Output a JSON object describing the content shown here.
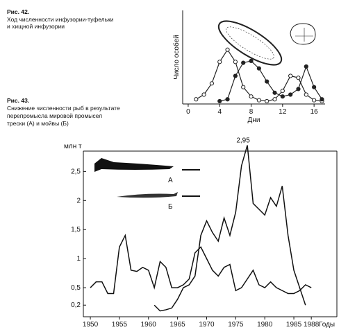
{
  "figures": [
    {
      "label": "Рис. 42.",
      "caption": [
        "Ход численности инфузории-туфельки",
        "и хищной инфузории"
      ]
    },
    {
      "label": "Рис. 43.",
      "caption": [
        "Снижение численности рыб в результате",
        "перепромысла  мировой промысел",
        "трески (А) и мойвы (Б)"
      ]
    }
  ],
  "chart_data": [
    {
      "type": "line",
      "x_label": "Дни",
      "y_label": "Число особей",
      "xlim": [
        -0.7,
        17.4
      ],
      "ylim": [
        0,
        100
      ],
      "xticks": [
        0,
        4,
        8,
        12,
        16
      ],
      "series": [
        {
          "color": "#222",
          "marker": "open",
          "x": [
            1,
            2,
            3,
            4,
            5,
            6,
            7,
            8,
            9,
            10,
            11,
            12,
            13,
            14,
            15,
            16,
            17
          ],
          "values": [
            5,
            10,
            22,
            45,
            58,
            45,
            18,
            8,
            4,
            3,
            5,
            14,
            30,
            28,
            10,
            4,
            3
          ]
        },
        {
          "color": "#222",
          "marker": "filled",
          "x": [
            4,
            5,
            6,
            7,
            8,
            9,
            10,
            11,
            12,
            13,
            14,
            15,
            16,
            17
          ],
          "values": [
            3,
            5,
            30,
            44,
            46,
            38,
            24,
            12,
            8,
            10,
            16,
            40,
            18,
            5
          ]
        }
      ]
    },
    {
      "type": "line",
      "x_label": "Годы",
      "y_label": "млн т",
      "xlim": [
        1948.8,
        1992.4
      ],
      "ylim": [
        0,
        2.85
      ],
      "xticks": [
        1950,
        1955,
        1960,
        1965,
        1970,
        1975,
        1980,
        1985,
        1988
      ],
      "yticks": [
        {
          "value": 0.2,
          "label": "0,2"
        },
        {
          "value": 0.5,
          "label": "0,5"
        },
        1,
        {
          "value": 1.5,
          "label": "1,5"
        },
        2,
        {
          "value": 2.5,
          "label": "2,5"
        }
      ],
      "series": [
        {
          "name": "А",
          "color": "#111",
          "x": [
            1950,
            1951,
            1952,
            1953,
            1954,
            1955,
            1956,
            1957,
            1958,
            1959,
            1960,
            1961,
            1962,
            1963,
            1964,
            1965,
            1966,
            1967,
            1968,
            1969,
            1970,
            1971,
            1972,
            1973,
            1974,
            1975,
            1976,
            1977,
            1978,
            1979,
            1980,
            1981,
            1982,
            1983,
            1984,
            1985,
            1986,
            1987,
            1988
          ],
          "values": [
            0.5,
            0.6,
            0.6,
            0.4,
            0.4,
            1.2,
            1.4,
            0.8,
            0.78,
            0.85,
            0.8,
            0.5,
            0.95,
            0.85,
            0.5,
            0.5,
            0.55,
            0.65,
            1.1,
            1.2,
            1.0,
            0.8,
            0.7,
            0.85,
            0.9,
            0.45,
            0.5,
            0.65,
            0.8,
            0.55,
            0.5,
            0.6,
            0.5,
            0.45,
            0.4,
            0.4,
            0.45,
            0.55,
            0.5
          ]
        },
        {
          "name": "Б",
          "color": "#111",
          "x": [
            1961,
            1962,
            1963,
            1964,
            1965,
            1966,
            1967,
            1968,
            1969,
            1970,
            1971,
            1972,
            1973,
            1974,
            1975,
            1976,
            1977,
            1978,
            1979,
            1980,
            1981,
            1982,
            1983,
            1984,
            1985,
            1986,
            1987
          ],
          "values": [
            0.2,
            0.1,
            0.12,
            0.15,
            0.3,
            0.5,
            0.55,
            0.7,
            1.4,
            1.65,
            1.45,
            1.3,
            1.7,
            1.4,
            1.8,
            2.6,
            2.95,
            1.95,
            1.85,
            1.75,
            2.05,
            1.9,
            2.25,
            1.4,
            0.8,
            0.5,
            0.2
          ],
          "value_labels": [
            null,
            null,
            null,
            null,
            null,
            null,
            null,
            null,
            null,
            null,
            null,
            null,
            null,
            null,
            null,
            null,
            "2,95",
            null,
            null,
            null,
            null,
            null,
            null,
            null,
            null,
            null,
            null
          ]
        }
      ]
    }
  ]
}
